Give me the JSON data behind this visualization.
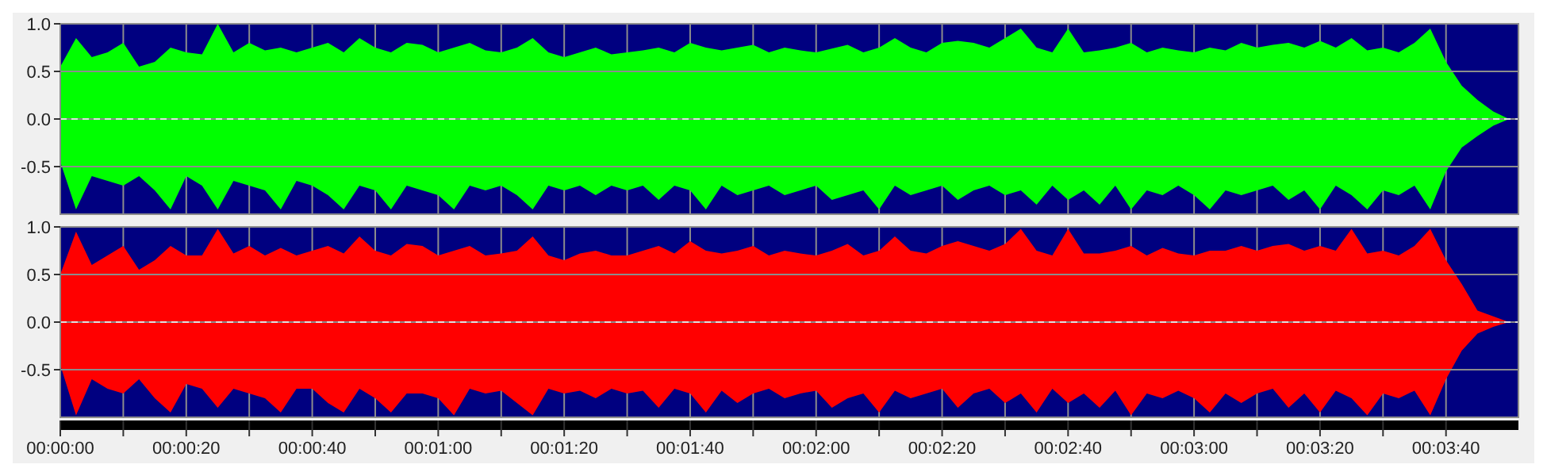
{
  "chart_data": [
    {
      "type": "area",
      "x": [
        0,
        2.5,
        5,
        7.5,
        10,
        12.5,
        15,
        17.5,
        20,
        22.5,
        25,
        27.5,
        30,
        32.5,
        35,
        37.5,
        40,
        42.5,
        45,
        47.5,
        50,
        52.5,
        55,
        57.5,
        60,
        62.5,
        65,
        67.5,
        70,
        72.5,
        75,
        77.5,
        80,
        82.5,
        85,
        87.5,
        90,
        92.5,
        95,
        97.5,
        100,
        102.5,
        105,
        107.5,
        110,
        112.5,
        115,
        117.5,
        120,
        122.5,
        125,
        127.5,
        130,
        132.5,
        135,
        137.5,
        140,
        142.5,
        145,
        147.5,
        150,
        152.5,
        155,
        157.5,
        160,
        162.5,
        165,
        167.5,
        170,
        172.5,
        175,
        177.5,
        180,
        182.5,
        185,
        187.5,
        190,
        192.5,
        195,
        197.5,
        200,
        202.5,
        205,
        207.5,
        210,
        212.5,
        215,
        217.5,
        220,
        222.5,
        225,
        227.5,
        230
      ],
      "series": [
        {
          "color": "#00ff00",
          "values": [
            0.55,
            0.85,
            0.65,
            0.7,
            0.8,
            0.55,
            0.6,
            0.75,
            0.7,
            0.68,
            1.0,
            0.7,
            0.8,
            0.72,
            0.75,
            0.7,
            0.75,
            0.8,
            0.7,
            0.85,
            0.75,
            0.7,
            0.8,
            0.78,
            0.7,
            0.75,
            0.8,
            0.72,
            0.7,
            0.75,
            0.85,
            0.7,
            0.65,
            0.7,
            0.75,
            0.68,
            0.7,
            0.72,
            0.75,
            0.7,
            0.8,
            0.75,
            0.72,
            0.75,
            0.78,
            0.7,
            0.75,
            0.72,
            0.7,
            0.74,
            0.78,
            0.7,
            0.75,
            0.85,
            0.75,
            0.7,
            0.8,
            0.82,
            0.8,
            0.75,
            0.85,
            0.95,
            0.75,
            0.7,
            0.95,
            0.7,
            0.72,
            0.75,
            0.8,
            0.7,
            0.75,
            0.72,
            0.7,
            0.75,
            0.72,
            0.8,
            0.75,
            0.78,
            0.8,
            0.75,
            0.82,
            0.75,
            0.85,
            0.72,
            0.75,
            0.7,
            0.8,
            0.95,
            0.6,
            0.35,
            0.2,
            0.08,
            0
          ]
        },
        {
          "color": "#00ff00",
          "values": [
            -0.45,
            -0.95,
            -0.6,
            -0.65,
            -0.7,
            -0.6,
            -0.75,
            -0.95,
            -0.6,
            -0.7,
            -0.95,
            -0.65,
            -0.7,
            -0.75,
            -0.95,
            -0.65,
            -0.7,
            -0.8,
            -0.95,
            -0.7,
            -0.75,
            -0.95,
            -0.7,
            -0.75,
            -0.8,
            -0.95,
            -0.7,
            -0.75,
            -0.7,
            -0.8,
            -0.95,
            -0.7,
            -0.75,
            -0.7,
            -0.8,
            -0.7,
            -0.75,
            -0.7,
            -0.85,
            -0.7,
            -0.75,
            -0.95,
            -0.7,
            -0.8,
            -0.75,
            -0.7,
            -0.8,
            -0.75,
            -0.7,
            -0.85,
            -0.8,
            -0.75,
            -0.95,
            -0.7,
            -0.8,
            -0.75,
            -0.7,
            -0.85,
            -0.75,
            -0.7,
            -0.8,
            -0.75,
            -0.9,
            -0.7,
            -0.85,
            -0.75,
            -0.9,
            -0.7,
            -0.95,
            -0.75,
            -0.8,
            -0.7,
            -0.8,
            -0.95,
            -0.75,
            -0.8,
            -0.75,
            -0.7,
            -0.85,
            -0.75,
            -0.95,
            -0.7,
            -0.8,
            -0.95,
            -0.75,
            -0.8,
            -0.7,
            -0.95,
            -0.55,
            -0.3,
            -0.18,
            -0.07,
            0
          ]
        }
      ],
      "xlim": [
        0,
        231.5
      ],
      "ylim": [
        -1,
        1
      ],
      "xticks": [
        0,
        10,
        20,
        30,
        40,
        50,
        60,
        70,
        80,
        90,
        100,
        110,
        120,
        130,
        140,
        150,
        160,
        170,
        180,
        190,
        200,
        210,
        220
      ],
      "yticks": [
        {
          "value": 1,
          "label": "1.0"
        },
        {
          "value": 0.5,
          "label": "0.5"
        },
        {
          "value": 0,
          "label": "0.0"
        },
        {
          "value": -0.5,
          "label": "-0.5"
        }
      ],
      "ref_lines": [
        {
          "axis": "y",
          "value": 0,
          "color": "#e0e0e0",
          "line_style": "dashed"
        }
      ],
      "bands": [
        {
          "axis": "y",
          "from": -1,
          "to": 1,
          "color": "#000080"
        }
      ],
      "grid": true,
      "tick_labels": "y"
    },
    {
      "type": "area",
      "x": [
        0,
        2.5,
        5,
        7.5,
        10,
        12.5,
        15,
        17.5,
        20,
        22.5,
        25,
        27.5,
        30,
        32.5,
        35,
        37.5,
        40,
        42.5,
        45,
        47.5,
        50,
        52.5,
        55,
        57.5,
        60,
        62.5,
        65,
        67.5,
        70,
        72.5,
        75,
        77.5,
        80,
        82.5,
        85,
        87.5,
        90,
        92.5,
        95,
        97.5,
        100,
        102.5,
        105,
        107.5,
        110,
        112.5,
        115,
        117.5,
        120,
        122.5,
        125,
        127.5,
        130,
        132.5,
        135,
        137.5,
        140,
        142.5,
        145,
        147.5,
        150,
        152.5,
        155,
        157.5,
        160,
        162.5,
        165,
        167.5,
        170,
        172.5,
        175,
        177.5,
        180,
        182.5,
        185,
        187.5,
        190,
        192.5,
        195,
        197.5,
        200,
        202.5,
        205,
        207.5,
        210,
        212.5,
        215,
        217.5,
        220,
        222.5,
        225,
        227.5,
        230
      ],
      "series": [
        {
          "color": "#ff0000",
          "values": [
            0.5,
            0.95,
            0.6,
            0.7,
            0.8,
            0.55,
            0.65,
            0.8,
            0.7,
            0.7,
            0.98,
            0.72,
            0.8,
            0.7,
            0.78,
            0.7,
            0.75,
            0.8,
            0.72,
            0.9,
            0.75,
            0.7,
            0.82,
            0.8,
            0.7,
            0.75,
            0.8,
            0.7,
            0.72,
            0.75,
            0.9,
            0.7,
            0.65,
            0.72,
            0.75,
            0.7,
            0.7,
            0.75,
            0.8,
            0.72,
            0.85,
            0.75,
            0.72,
            0.75,
            0.8,
            0.7,
            0.75,
            0.72,
            0.7,
            0.75,
            0.82,
            0.7,
            0.75,
            0.9,
            0.75,
            0.72,
            0.8,
            0.85,
            0.8,
            0.75,
            0.82,
            0.98,
            0.75,
            0.7,
            0.98,
            0.72,
            0.72,
            0.75,
            0.8,
            0.7,
            0.78,
            0.72,
            0.7,
            0.75,
            0.75,
            0.8,
            0.75,
            0.8,
            0.82,
            0.75,
            0.8,
            0.75,
            0.98,
            0.72,
            0.75,
            0.7,
            0.8,
            0.98,
            0.65,
            0.4,
            0.12,
            0.06,
            0
          ]
        },
        {
          "color": "#ff0000",
          "values": [
            -0.45,
            -0.98,
            -0.6,
            -0.7,
            -0.75,
            -0.6,
            -0.8,
            -0.95,
            -0.65,
            -0.7,
            -0.9,
            -0.7,
            -0.75,
            -0.8,
            -0.95,
            -0.7,
            -0.7,
            -0.85,
            -0.95,
            -0.7,
            -0.8,
            -0.95,
            -0.75,
            -0.75,
            -0.8,
            -0.98,
            -0.7,
            -0.75,
            -0.72,
            -0.85,
            -0.98,
            -0.7,
            -0.75,
            -0.72,
            -0.8,
            -0.7,
            -0.75,
            -0.72,
            -0.9,
            -0.7,
            -0.75,
            -0.95,
            -0.72,
            -0.85,
            -0.75,
            -0.7,
            -0.8,
            -0.75,
            -0.72,
            -0.9,
            -0.8,
            -0.75,
            -0.95,
            -0.72,
            -0.8,
            -0.75,
            -0.7,
            -0.9,
            -0.75,
            -0.7,
            -0.85,
            -0.75,
            -0.95,
            -0.7,
            -0.85,
            -0.75,
            -0.9,
            -0.72,
            -0.98,
            -0.75,
            -0.8,
            -0.72,
            -0.8,
            -0.95,
            -0.75,
            -0.85,
            -0.75,
            -0.7,
            -0.9,
            -0.75,
            -0.95,
            -0.72,
            -0.8,
            -0.98,
            -0.75,
            -0.8,
            -0.72,
            -0.98,
            -0.6,
            -0.3,
            -0.12,
            -0.05,
            0
          ]
        }
      ],
      "xlim": [
        0,
        231.5
      ],
      "ylim": [
        -1,
        1
      ],
      "xticks": [
        {
          "value": 0,
          "label": "00:00:00"
        },
        {
          "value": 10,
          "label": null
        },
        {
          "value": 20,
          "label": "00:00:20"
        },
        {
          "value": 30,
          "label": null
        },
        {
          "value": 40,
          "label": "00:00:40"
        },
        {
          "value": 50,
          "label": null
        },
        {
          "value": 60,
          "label": "00:01:00"
        },
        {
          "value": 70,
          "label": null
        },
        {
          "value": 80,
          "label": "00:01:20"
        },
        {
          "value": 90,
          "label": null
        },
        {
          "value": 100,
          "label": "00:01:40"
        },
        {
          "value": 110,
          "label": null
        },
        {
          "value": 120,
          "label": "00:02:00"
        },
        {
          "value": 130,
          "label": null
        },
        {
          "value": 140,
          "label": "00:02:20"
        },
        {
          "value": 150,
          "label": null
        },
        {
          "value": 160,
          "label": "00:02:40"
        },
        {
          "value": 170,
          "label": null
        },
        {
          "value": 180,
          "label": "00:03:00"
        },
        {
          "value": 190,
          "label": null
        },
        {
          "value": 200,
          "label": "00:03:20"
        },
        {
          "value": 210,
          "label": null
        },
        {
          "value": 220,
          "label": "00:03:40"
        }
      ],
      "yticks": [
        {
          "value": 1,
          "label": "1.0"
        },
        {
          "value": 0.5,
          "label": "0.5"
        },
        {
          "value": 0,
          "label": "0.0"
        },
        {
          "value": -0.5,
          "label": "-0.5"
        }
      ],
      "ref_lines": [
        {
          "axis": "y",
          "value": 0,
          "color": "#e0e0e0",
          "line_style": "dashed"
        }
      ],
      "bands": [
        {
          "axis": "y",
          "from": -1,
          "to": 1,
          "color": "#000080"
        }
      ],
      "grid": true
    }
  ]
}
